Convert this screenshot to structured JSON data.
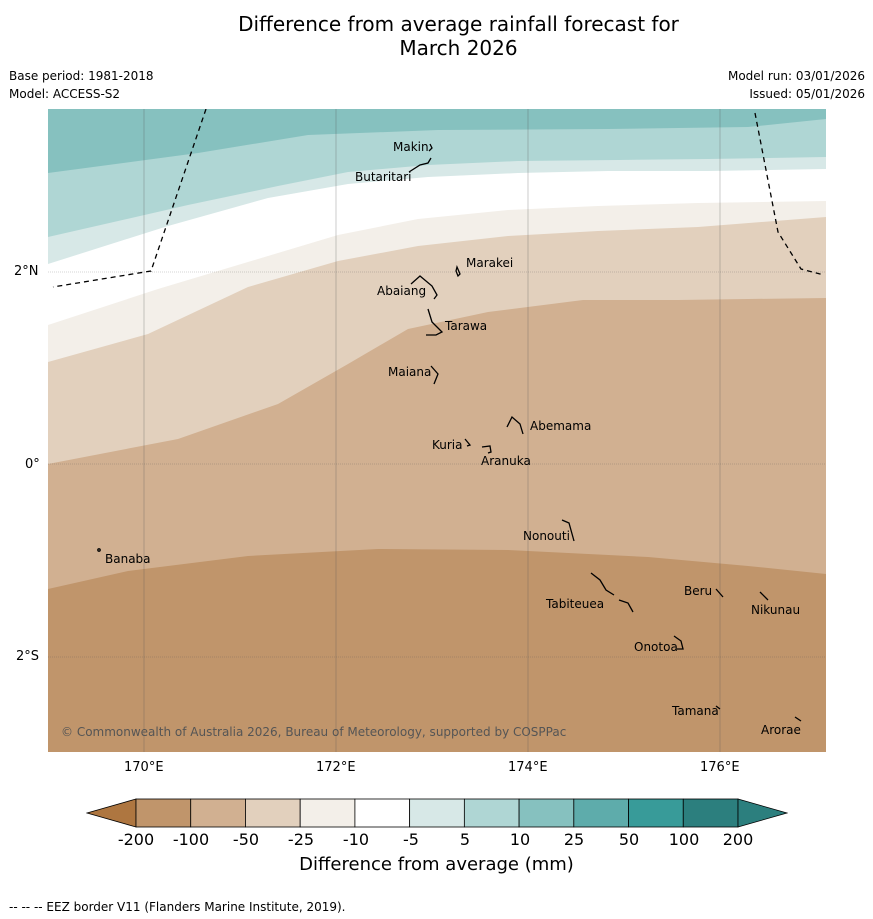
{
  "header": {
    "title_line1": "Difference from average rainfall forecast for",
    "title_line2": "March 2026",
    "base_period": "Base period: 1981-2018",
    "model": "Model: ACCESS-S2",
    "model_run": "Model run: 03/01/2026",
    "issued": "Issued: 05/01/2026"
  },
  "map": {
    "longitude_ticks": [
      "170°E",
      "172°E",
      "174°E",
      "176°E"
    ],
    "latitude_ticks": [
      "2°N",
      "0°",
      "2°S"
    ],
    "copyright": "© Commonwealth of Australia 2026, Bureau of Meteorology, supported by COSPPac",
    "places": {
      "makin": "Makin",
      "butaritari": "Butaritari",
      "marakei": "Marakei",
      "abaiang": "Abaiang",
      "tarawa": "Tarawa",
      "maiana": "Maiana",
      "abemama": "Abemama",
      "kuria": "Kuria",
      "aranuka": "Aranuka",
      "nonouti": "Nonouti",
      "banaba": "Banaba",
      "beru": "Beru",
      "nikunau": "Nikunau",
      "tabiteuea": "Tabiteuea",
      "onotoa": "Onotoa",
      "tamana": "Tamana",
      "arorae": "Arorae"
    }
  },
  "legend": {
    "labels": [
      "-200",
      "-100",
      "-50",
      "-25",
      "-10",
      "-5",
      "5",
      "10",
      "25",
      "50",
      "100",
      "200"
    ],
    "colors": [
      "#ae7640",
      "#c0956b",
      "#d1b091",
      "#e2d0bd",
      "#f3efe9",
      "#ffffff",
      "#d7e8e7",
      "#afd6d4",
      "#86c1bf",
      "#5eacab",
      "#389b99",
      "#2c7f7e"
    ],
    "title": "Difference from average (mm)"
  },
  "footnote": "--  --  -- EEZ border V11 (Flanders Marine Institute, 2019).",
  "chart_data": {
    "type": "contour-map",
    "variable": "Difference from average rainfall (mm)",
    "period": "March 2026",
    "lon_range": [
      169.0,
      177.1
    ],
    "lat_range": [
      -3.0,
      3.6
    ],
    "bins": [
      "<-200",
      "-200 to -100",
      "-100 to -50",
      "-50 to -25",
      "-25 to -10",
      "-10 to -5",
      "-5 to 5",
      "5 to 10",
      "10 to 25",
      "25 to 50",
      "50 to 100",
      "100 to 200",
      ">200"
    ],
    "regions": [
      {
        "bin": "25 to 50",
        "area": "far north edge"
      },
      {
        "bin": "10 to 25",
        "area": "north, around Makin and Butaritari"
      },
      {
        "bin": "5 to 10",
        "area": "narrow band north of 2°N"
      },
      {
        "bin": "-5 to 5",
        "area": "band near 2°N"
      },
      {
        "bin": "-10 to -5",
        "area": "narrow band south of it"
      },
      {
        "bin": "-25 to -10",
        "area": "Gilbert Islands north (Marakei, Abaiang, Tarawa)"
      },
      {
        "bin": "-50 to -25",
        "area": "central (Maiana, Abemama, Kuria, Aranuka, Nonouti, Banaba)"
      },
      {
        "bin": "-100 to -50",
        "area": "south (Tabiteuea, Beru, Nikunau, Onotoa, Tamana, Arorae)"
      }
    ]
  }
}
